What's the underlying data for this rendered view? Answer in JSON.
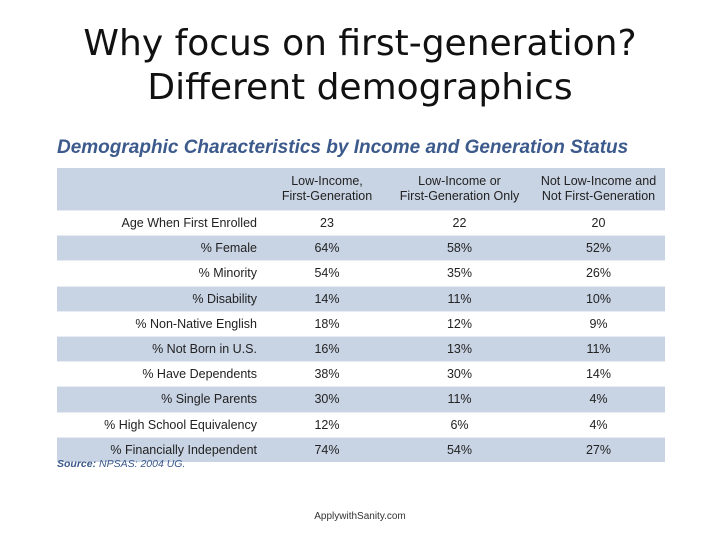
{
  "slide": {
    "title_line1": "Why focus on first-generation?",
    "title_line2": "Different demographics",
    "footer": "ApplywithSanity.com"
  },
  "chart_data": {
    "type": "table",
    "title": "Demographic Characteristics by Income and Generation Status",
    "columns": [
      {
        "line1": "Low-Income,",
        "line2": "First-Generation"
      },
      {
        "line1": "Low-Income or",
        "line2": "First-Generation Only"
      },
      {
        "line1": "Not Low-Income and",
        "line2": "Not First-Generation"
      }
    ],
    "rows": [
      {
        "label": "Age When First Enrolled",
        "values": [
          "23",
          "22",
          "20"
        ]
      },
      {
        "label": "% Female",
        "values": [
          "64%",
          "58%",
          "52%"
        ]
      },
      {
        "label": "% Minority",
        "values": [
          "54%",
          "35%",
          "26%"
        ]
      },
      {
        "label": "% Disability",
        "values": [
          "14%",
          "11%",
          "10%"
        ]
      },
      {
        "label": "% Non-Native English",
        "values": [
          "18%",
          "12%",
          "9%"
        ]
      },
      {
        "label": "% Not Born in U.S.",
        "values": [
          "16%",
          "13%",
          "11%"
        ]
      },
      {
        "label": "% Have Dependents",
        "values": [
          "38%",
          "30%",
          "14%"
        ]
      },
      {
        "label": "% Single Parents",
        "values": [
          "30%",
          "11%",
          "4%"
        ]
      },
      {
        "label": "% High School Equivalency",
        "values": [
          "12%",
          "6%",
          "4%"
        ]
      },
      {
        "label": "% Financially Independent",
        "values": [
          "74%",
          "54%",
          "27%"
        ]
      }
    ],
    "source_label": "Source:",
    "source_text": "NPSAS: 2004 UG.",
    "colors": {
      "header": "#c8d3e3",
      "band": "#c8d3e3",
      "title": "#3c5a8c"
    }
  }
}
